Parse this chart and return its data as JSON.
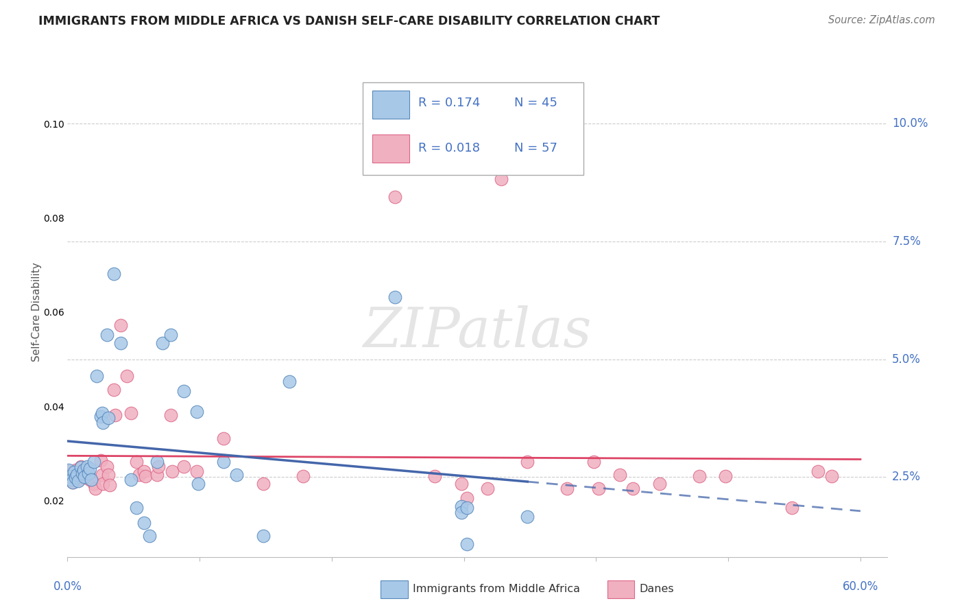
{
  "title": "IMMIGRANTS FROM MIDDLE AFRICA VS DANISH SELF-CARE DISABILITY CORRELATION CHART",
  "source": "Source: ZipAtlas.com",
  "ylabel": "Self-Care Disability",
  "yticks": [
    0.025,
    0.05,
    0.075,
    0.1
  ],
  "ytick_labels": [
    "2.5%",
    "5.0%",
    "7.5%",
    "10.0%"
  ],
  "xlim": [
    0.0,
    0.62
  ],
  "ylim": [
    0.008,
    0.112
  ],
  "legend_r1": "R = 0.174",
  "legend_n1": "N = 45",
  "legend_r2": "R = 0.018",
  "legend_n2": "N = 57",
  "legend_label1": "Immigrants from Middle Africa",
  "legend_label2": "Danes",
  "color_blue": "#a8c8e8",
  "color_pink": "#f0b0c0",
  "edge_blue": "#5588bb",
  "edge_pink": "#dd6688",
  "regline_blue": "#4466aa",
  "regline_pink": "#dd4466",
  "scatter_blue": [
    [
      0.001,
      0.0265
    ],
    [
      0.002,
      0.0252
    ],
    [
      0.003,
      0.0245
    ],
    [
      0.004,
      0.0238
    ],
    [
      0.005,
      0.026
    ],
    [
      0.006,
      0.0248
    ],
    [
      0.007,
      0.0255
    ],
    [
      0.008,
      0.0242
    ],
    [
      0.01,
      0.027
    ],
    [
      0.011,
      0.0258
    ],
    [
      0.012,
      0.0265
    ],
    [
      0.013,
      0.025
    ],
    [
      0.015,
      0.0272
    ],
    [
      0.016,
      0.0258
    ],
    [
      0.017,
      0.0268
    ],
    [
      0.018,
      0.0245
    ],
    [
      0.02,
      0.0282
    ],
    [
      0.022,
      0.0465
    ],
    [
      0.025,
      0.0378
    ],
    [
      0.026,
      0.0385
    ],
    [
      0.027,
      0.0365
    ],
    [
      0.03,
      0.0552
    ],
    [
      0.031,
      0.0375
    ],
    [
      0.035,
      0.0682
    ],
    [
      0.04,
      0.0535
    ],
    [
      0.048,
      0.0245
    ],
    [
      0.052,
      0.0185
    ],
    [
      0.058,
      0.0152
    ],
    [
      0.062,
      0.0125
    ],
    [
      0.068,
      0.0282
    ],
    [
      0.072,
      0.0535
    ],
    [
      0.078,
      0.0552
    ],
    [
      0.088,
      0.0432
    ],
    [
      0.098,
      0.0388
    ],
    [
      0.099,
      0.0235
    ],
    [
      0.118,
      0.0282
    ],
    [
      0.128,
      0.0255
    ],
    [
      0.148,
      0.0125
    ],
    [
      0.168,
      0.0452
    ],
    [
      0.248,
      0.0632
    ],
    [
      0.298,
      0.0188
    ],
    [
      0.302,
      0.0108
    ],
    [
      0.348,
      0.0165
    ],
    [
      0.298,
      0.0175
    ],
    [
      0.302,
      0.0185
    ]
  ],
  "scatter_pink": [
    [
      0.001,
      0.0262
    ],
    [
      0.002,
      0.0255
    ],
    [
      0.003,
      0.0248
    ],
    [
      0.004,
      0.0238
    ],
    [
      0.006,
      0.0265
    ],
    [
      0.007,
      0.0255
    ],
    [
      0.008,
      0.0245
    ],
    [
      0.01,
      0.0272
    ],
    [
      0.011,
      0.0258
    ],
    [
      0.012,
      0.0248
    ],
    [
      0.015,
      0.0265
    ],
    [
      0.016,
      0.0255
    ],
    [
      0.017,
      0.0245
    ],
    [
      0.02,
      0.0235
    ],
    [
      0.021,
      0.0225
    ],
    [
      0.025,
      0.0285
    ],
    [
      0.026,
      0.0255
    ],
    [
      0.027,
      0.0235
    ],
    [
      0.03,
      0.0272
    ],
    [
      0.031,
      0.0255
    ],
    [
      0.032,
      0.0232
    ],
    [
      0.035,
      0.0435
    ],
    [
      0.036,
      0.0382
    ],
    [
      0.04,
      0.0572
    ],
    [
      0.045,
      0.0465
    ],
    [
      0.048,
      0.0385
    ],
    [
      0.052,
      0.0282
    ],
    [
      0.054,
      0.0255
    ],
    [
      0.058,
      0.0262
    ],
    [
      0.059,
      0.0252
    ],
    [
      0.068,
      0.0255
    ],
    [
      0.069,
      0.0272
    ],
    [
      0.078,
      0.0382
    ],
    [
      0.079,
      0.0262
    ],
    [
      0.088,
      0.0272
    ],
    [
      0.098,
      0.0262
    ],
    [
      0.118,
      0.0332
    ],
    [
      0.148,
      0.0235
    ],
    [
      0.178,
      0.0252
    ],
    [
      0.248,
      0.0845
    ],
    [
      0.278,
      0.0252
    ],
    [
      0.298,
      0.0235
    ],
    [
      0.318,
      0.0225
    ],
    [
      0.348,
      0.0282
    ],
    [
      0.378,
      0.0225
    ],
    [
      0.398,
      0.0282
    ],
    [
      0.418,
      0.0255
    ],
    [
      0.448,
      0.0235
    ],
    [
      0.478,
      0.0252
    ],
    [
      0.498,
      0.0252
    ],
    [
      0.328,
      0.0882
    ],
    [
      0.302,
      0.0205
    ],
    [
      0.402,
      0.0225
    ],
    [
      0.428,
      0.0225
    ],
    [
      0.548,
      0.0185
    ],
    [
      0.568,
      0.0262
    ],
    [
      0.578,
      0.0252
    ]
  ],
  "watermark": "ZIPatlas",
  "background_color": "#ffffff",
  "grid_color": "#cccccc"
}
